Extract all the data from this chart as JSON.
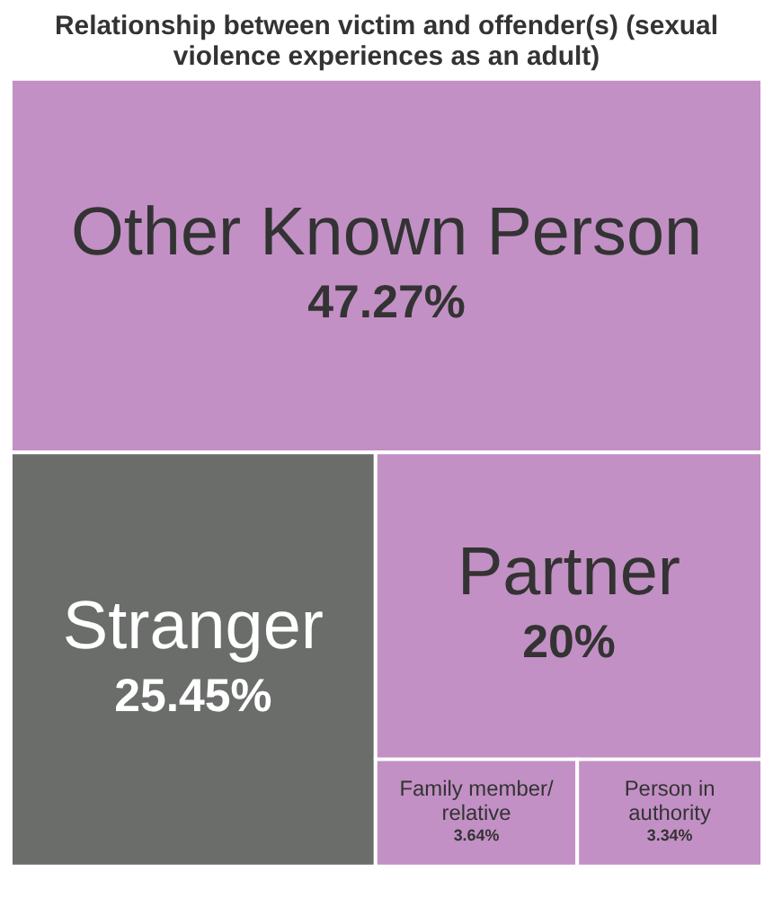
{
  "chart_data": {
    "type": "other",
    "title": "Relationship between victim and offender(s) (sexual violence experiences as an adult)",
    "categories": [
      "Other Known Person",
      "Stranger",
      "Partner",
      "Family member/ relative",
      "Person in authority"
    ],
    "values": [
      47.27,
      25.45,
      20,
      3.64,
      3.34
    ],
    "value_labels": [
      "47.27%",
      "25.45%",
      "20%",
      "3.64%",
      "3.34%"
    ],
    "colors": [
      "#c290c5",
      "#6b6d6b",
      "#c290c5",
      "#c290c5",
      "#c290c5"
    ]
  }
}
